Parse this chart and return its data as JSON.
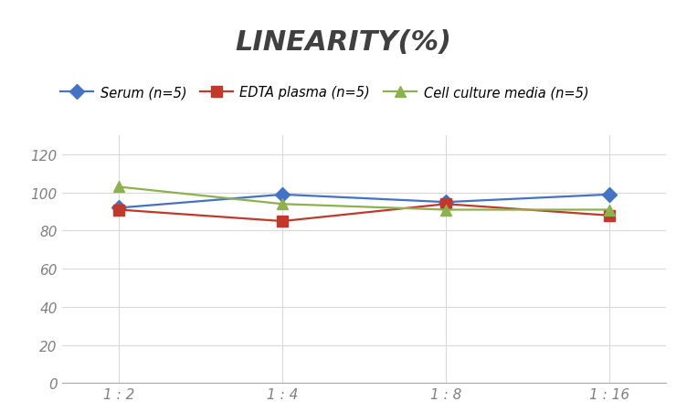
{
  "title": "LINEARITY(%)",
  "x_labels": [
    "1 : 2",
    "1 : 4",
    "1 : 8",
    "1 : 16"
  ],
  "x_positions": [
    0,
    1,
    2,
    3
  ],
  "series": [
    {
      "label": "Serum (n=5)",
      "values": [
        92,
        99,
        95,
        99
      ],
      "color": "#4472C4",
      "marker": "D",
      "marker_color": "#4472C4"
    },
    {
      "label": "EDTA plasma (n=5)",
      "values": [
        91,
        85,
        94,
        88
      ],
      "color": "#C0392B",
      "marker": "s",
      "marker_color": "#C0392B"
    },
    {
      "label": "Cell culture media (n=5)",
      "values": [
        103,
        94,
        91,
        91
      ],
      "color": "#8DB14F",
      "marker": "^",
      "marker_color": "#8DB14F"
    }
  ],
  "ylim": [
    0,
    130
  ],
  "yticks": [
    0,
    20,
    40,
    60,
    80,
    100,
    120
  ],
  "grid_color": "#D9D9D9",
  "background_color": "#FFFFFF",
  "title_fontsize": 22,
  "title_color": "#404040",
  "legend_fontsize": 10.5,
  "tick_fontsize": 11,
  "tick_color": "#808080",
  "line_width": 1.6,
  "marker_size": 8
}
